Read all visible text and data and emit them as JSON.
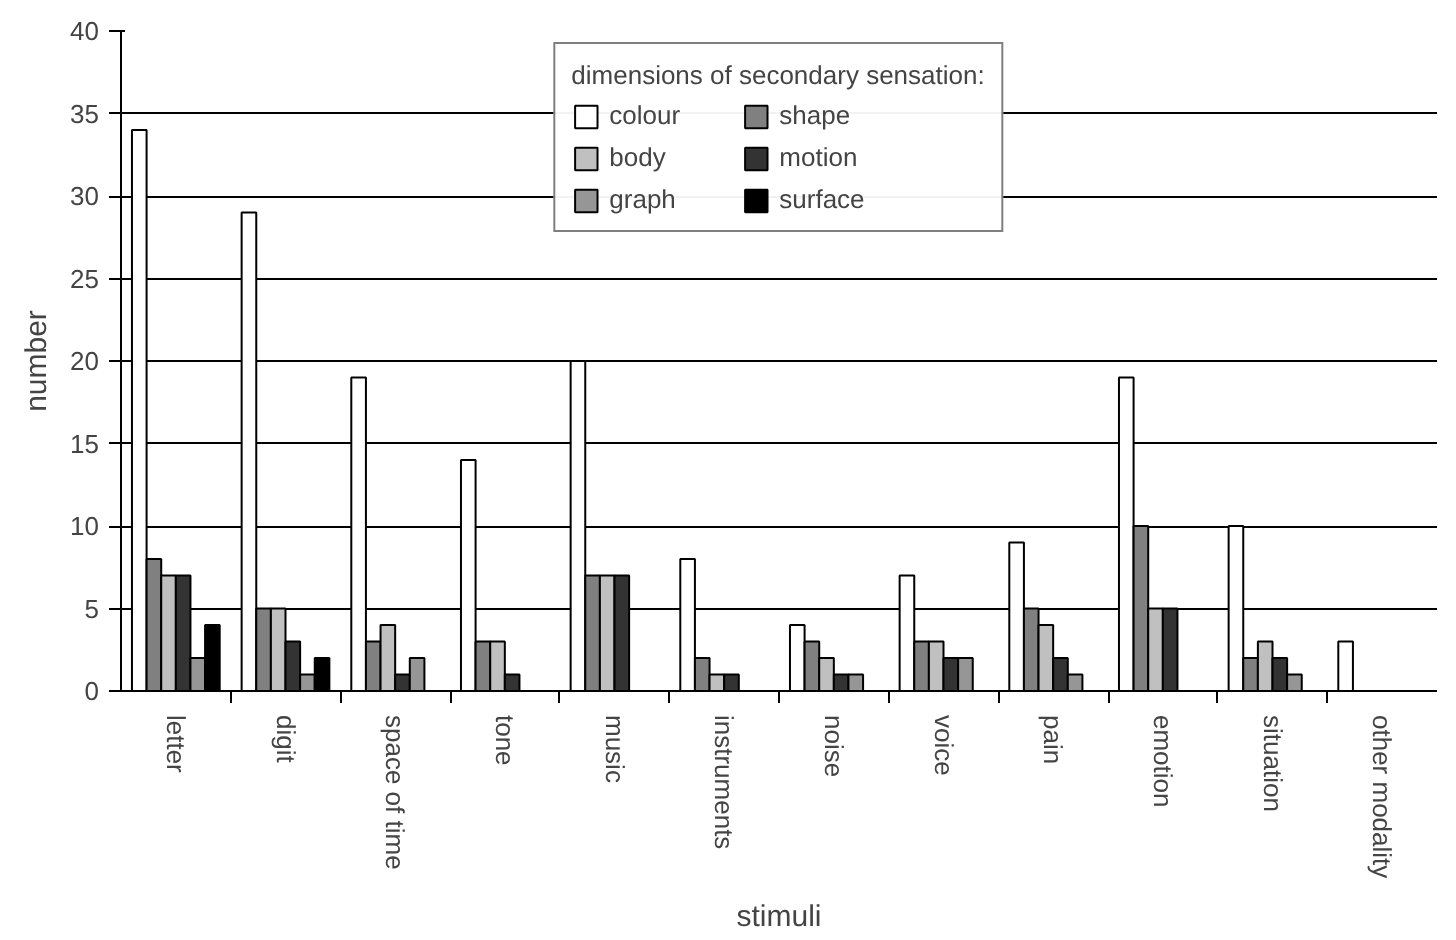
{
  "chart_data": {
    "type": "bar",
    "xlabel": "stimuli",
    "ylabel": "number",
    "legend_title": "dimensions of secondary sensation:",
    "categories": [
      "letter",
      "digit",
      "space of time",
      "tone",
      "music",
      "instruments",
      "noise",
      "voice",
      "pain",
      "emotion",
      "situation",
      "other modality"
    ],
    "series": [
      {
        "name": "colour",
        "color": "#ffffff",
        "values": [
          34,
          29,
          19,
          14,
          20,
          8,
          4,
          7,
          9,
          19,
          10,
          3
        ]
      },
      {
        "name": "shape",
        "color": "#808080",
        "values": [
          8,
          5,
          3,
          3,
          7,
          2,
          3,
          3,
          5,
          10,
          2,
          0
        ]
      },
      {
        "name": "body",
        "color": "#c0c0c0",
        "values": [
          7,
          5,
          4,
          3,
          7,
          1,
          2,
          3,
          4,
          5,
          3,
          0
        ]
      },
      {
        "name": "motion",
        "color": "#333333",
        "values": [
          7,
          3,
          1,
          1,
          7,
          1,
          1,
          2,
          2,
          5,
          2,
          0
        ]
      },
      {
        "name": "graph",
        "color": "#969696",
        "values": [
          2,
          1,
          2,
          0,
          0,
          0,
          1,
          2,
          1,
          0,
          1,
          0
        ]
      },
      {
        "name": "surface",
        "color": "#000000",
        "values": [
          4,
          2,
          0,
          0,
          0,
          0,
          0,
          0,
          0,
          0,
          0,
          0
        ]
      }
    ],
    "ylim": [
      0,
      40
    ],
    "yticks": [
      0,
      5,
      10,
      15,
      20,
      25,
      30,
      35,
      40
    ],
    "grid": "y",
    "legend": "top"
  }
}
